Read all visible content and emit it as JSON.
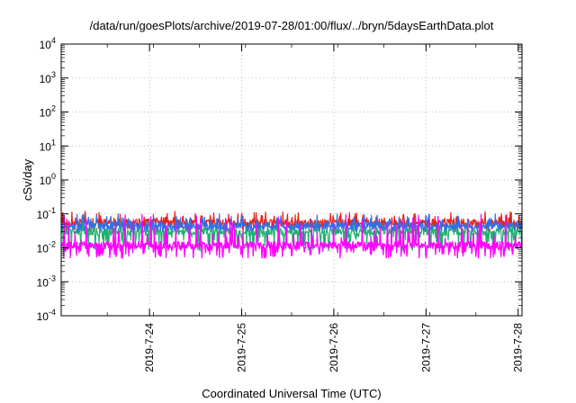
{
  "chart_data": {
    "type": "line",
    "title": "/data/run/goesPlots/archive/2019-07-28/01:00/flux/../bryn/5daysEarthData.plot",
    "xlabel": "Coordinated Universal Time (UTC)",
    "ylabel": "cSv/day",
    "yscale": "log",
    "ylim": [
      0.0001,
      10000
    ],
    "xlim": [
      "2019-07-23T01:00",
      "2019-07-28T01:00"
    ],
    "grid": true,
    "legend": "none",
    "y_ticks": [
      {
        "value": 0.0001,
        "base": "10",
        "exp": "-4"
      },
      {
        "value": 0.001,
        "base": "10",
        "exp": "-3"
      },
      {
        "value": 0.01,
        "base": "10",
        "exp": "-2"
      },
      {
        "value": 0.1,
        "base": "10",
        "exp": "-1"
      },
      {
        "value": 1,
        "base": "10",
        "exp": "0"
      },
      {
        "value": 10,
        "base": "10",
        "exp": "1"
      },
      {
        "value": 100,
        "base": "10",
        "exp": "2"
      },
      {
        "value": 1000,
        "base": "10",
        "exp": "3"
      },
      {
        "value": 10000,
        "base": "10",
        "exp": "4"
      }
    ],
    "x_ticks": [
      "2019-7-24",
      "2019-7-25",
      "2019-7-26",
      "2019-7-27",
      "2019-7-28"
    ],
    "series": [
      {
        "color": "#e8211c",
        "typical": 0.055,
        "low": 0.03,
        "high": 0.12
      },
      {
        "color": "#20b070",
        "typical": 0.03,
        "low": 0.008,
        "high": 0.06
      },
      {
        "color": "#2f6fe8",
        "typical": 0.045,
        "low": 0.03,
        "high": 0.1
      },
      {
        "color": "#ff00ff",
        "typical": 0.012,
        "low": 0.005,
        "high": 0.1
      }
    ]
  }
}
